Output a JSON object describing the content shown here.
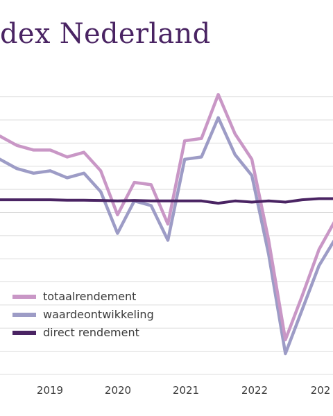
{
  "chart_data": {
    "type": "line",
    "title": "dex Nederland",
    "xlabel": "",
    "ylabel": "",
    "grid": true,
    "legend_position": "bottom-left",
    "x_ticks": [
      "2019",
      "2020",
      "2021",
      "2022",
      "202"
    ],
    "x": [
      "2018Q2",
      "2018Q3",
      "2018Q4",
      "2019Q1",
      "2019Q2",
      "2019Q3",
      "2019Q4",
      "2020Q1",
      "2020Q2",
      "2020Q3",
      "2020Q4",
      "2021Q1",
      "2021Q2",
      "2021Q3",
      "2021Q4",
      "2022Q1",
      "2022Q2",
      "2022Q3",
      "2022Q4",
      "2023Q1",
      "2023Q2",
      "2023Q3"
    ],
    "series": [
      {
        "name": "totaalrendement",
        "color": "#c997c6",
        "values": [
          2.8,
          2.4,
          2.2,
          2.2,
          1.9,
          2.1,
          1.3,
          -0.6,
          0.8,
          0.7,
          -1.0,
          2.6,
          2.7,
          4.6,
          2.9,
          1.8,
          -1.7,
          -6.0,
          -4.1,
          -2.1,
          -0.8,
          0.0
        ]
      },
      {
        "name": "waardeontwikkeling",
        "color": "#9d9cc6",
        "values": [
          1.8,
          1.4,
          1.2,
          1.3,
          1.0,
          1.2,
          0.4,
          -1.4,
          0.0,
          -0.2,
          -1.7,
          1.8,
          1.9,
          3.6,
          2.0,
          1.1,
          -2.3,
          -6.6,
          -4.7,
          -2.8,
          -1.6,
          -0.9
        ]
      },
      {
        "name": "direct rendement",
        "color": "#4a2463",
        "values": [
          0.05,
          0.05,
          0.05,
          0.05,
          0.03,
          0.03,
          0.02,
          0.0,
          0.02,
          0.0,
          0.0,
          0.0,
          0.0,
          -0.1,
          0.0,
          -0.05,
          0.0,
          -0.05,
          0.05,
          0.1,
          0.1,
          0.1
        ]
      }
    ],
    "ylim": [
      -7.5,
      5.0
    ]
  }
}
